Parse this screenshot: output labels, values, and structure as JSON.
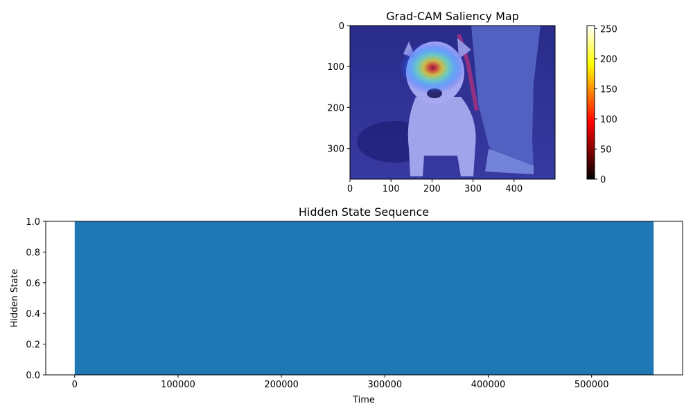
{
  "chart_data": [
    {
      "type": "heatmap",
      "title": "Grad-CAM Saliency Map",
      "xlabel": "",
      "ylabel": "",
      "xlim": [
        0,
        500
      ],
      "ylim": [
        375,
        0
      ],
      "x_ticks": [
        0,
        100,
        200,
        300,
        400
      ],
      "y_ticks": [
        0,
        100,
        200,
        300
      ],
      "overlay_hotspot": {
        "x": 202,
        "y": 103
      },
      "colorbar": {
        "colormap": "hot",
        "range": [
          0,
          255
        ],
        "ticks": [
          0,
          50,
          100,
          150,
          200,
          250
        ]
      }
    },
    {
      "type": "area",
      "title": "Hidden State Sequence",
      "xlabel": "Time",
      "ylabel": "Hidden State",
      "xlim": [
        -28000,
        588000
      ],
      "ylim": [
        0,
        1
      ],
      "x_ticks": [
        0,
        100000,
        200000,
        300000,
        400000,
        500000
      ],
      "y_ticks": [
        0.0,
        0.2,
        0.4,
        0.6,
        0.8,
        1.0
      ],
      "y_tick_labels": [
        "0.0",
        "0.2",
        "0.4",
        "0.6",
        "0.8",
        "1.0"
      ],
      "series": [
        {
          "x_start": 0,
          "x_end": 560000,
          "value": 1.0,
          "color": "#1f77b4"
        }
      ]
    }
  ]
}
